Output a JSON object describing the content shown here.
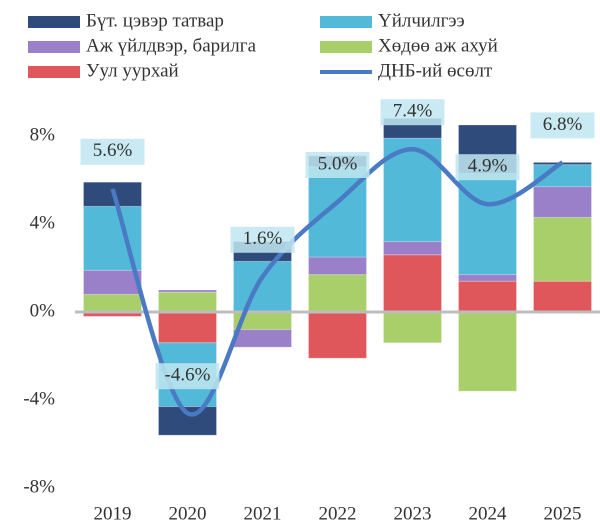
{
  "chart_data": {
    "type": "bar",
    "categories": [
      "2019",
      "2020",
      "2021",
      "2022",
      "2023",
      "2024",
      "2025"
    ],
    "series": [
      {
        "name": "Бүт. цэвэр татвар",
        "color": "#2f4b7c",
        "values": [
          1.1,
          -1.3,
          0.9,
          0.5,
          0.9,
          2.2,
          0.1
        ]
      },
      {
        "name": "Үйлчилгээ",
        "color": "#52b9d8",
        "values": [
          2.9,
          -2.9,
          2.3,
          4.1,
          4.7,
          4.6,
          1.0
        ]
      },
      {
        "name": "Аж үйлдвэр, барилга",
        "color": "#9a80c8",
        "values": [
          1.1,
          0.1,
          -0.8,
          0.8,
          0.6,
          0.3,
          1.4
        ]
      },
      {
        "name": "Хөдөө аж ахуй",
        "color": "#a8cf6a",
        "values": [
          0.8,
          0.9,
          -0.8,
          1.7,
          -1.4,
          -3.6,
          2.9
        ]
      },
      {
        "name": "Уул уурхай",
        "color": "#e0575b",
        "values": [
          -0.2,
          -1.4,
          0,
          -2.1,
          2.6,
          1.4,
          1.4
        ]
      },
      {
        "name": "ДНБ-ий өсөлт",
        "type": "line",
        "color": "#4a7ac4",
        "values": [
          5.6,
          -4.6,
          1.6,
          5.0,
          7.4,
          4.9,
          6.8
        ],
        "value_labels": [
          "5.6%",
          "-4.6%",
          "1.6%",
          "5.0%",
          "7.4%",
          "4.9%",
          "6.8%"
        ]
      }
    ],
    "ylim": [
      -8,
      10
    ],
    "yticks": [
      {
        "value": -8,
        "label": "-8%"
      },
      {
        "value": -4,
        "label": "-4%"
      },
      {
        "value": 0,
        "label": "0%"
      },
      {
        "value": 4,
        "label": "4%"
      },
      {
        "value": 8,
        "label": "8%"
      }
    ]
  }
}
